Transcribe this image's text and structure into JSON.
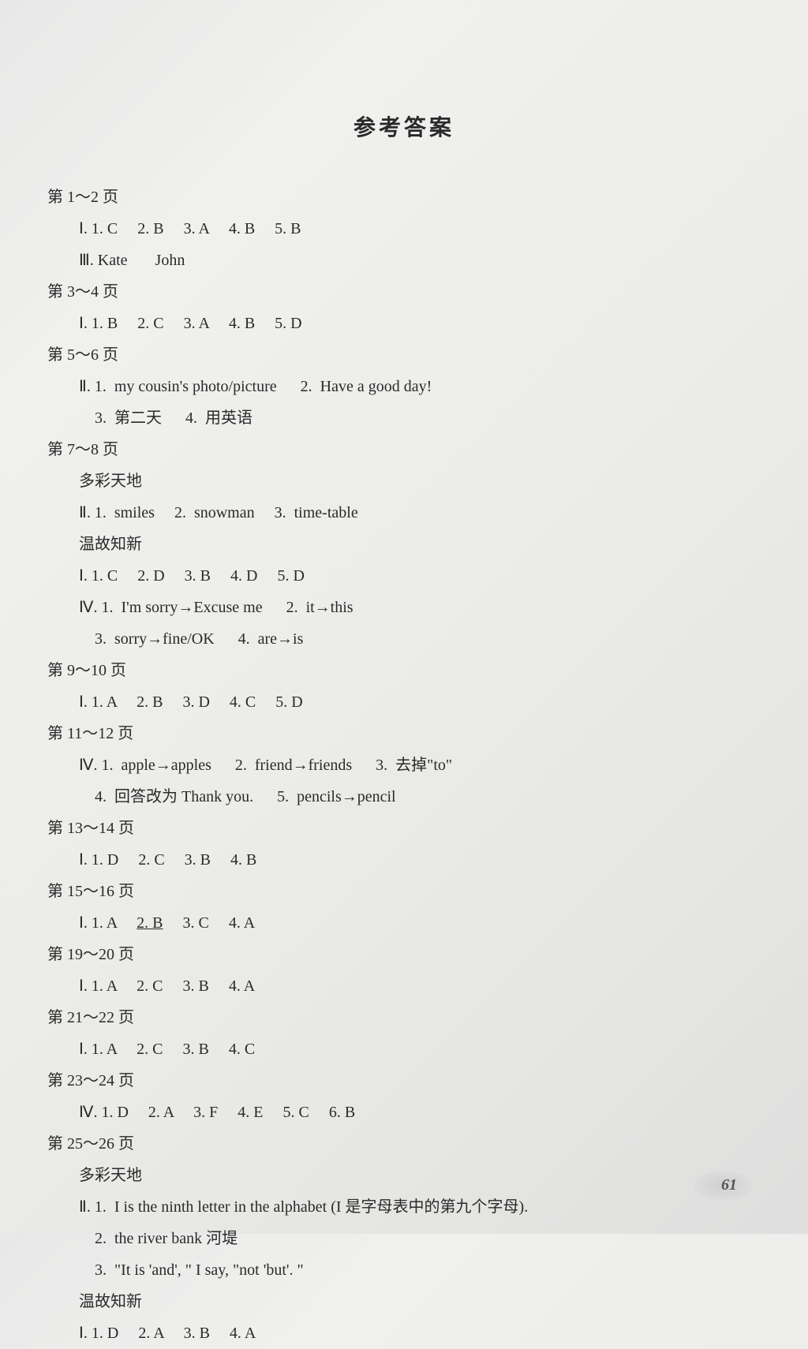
{
  "title": "参考答案",
  "page_number": "61",
  "typography": {
    "title_fontsize": 28,
    "body_fontsize": 20,
    "line_height": 2.0,
    "font_family": "SimSun, Times New Roman, serif"
  },
  "colors": {
    "text": "#2a2a2a",
    "background_gradient_start": "#e8e8e8",
    "background_gradient_end": "#dedede",
    "page_badge": "#c5c5c5"
  },
  "sections": [
    {
      "header": "第 1～2 页",
      "lines": [
        "Ⅰ. 1. C     2. B     3. A     4. B     5. B",
        "Ⅲ. Kate       John"
      ]
    },
    {
      "header": "第 3～4 页",
      "lines": [
        "Ⅰ. 1. B     2. C     3. A     4. B     5. D"
      ]
    },
    {
      "header": "第 5～6 页",
      "lines": [
        "Ⅱ. 1.  my cousin's photo/picture      2.  Have a good day!",
        "    3.  第二天      4.  用英语"
      ]
    },
    {
      "header": "第 7～8 页",
      "lines": [
        "多彩天地",
        "Ⅱ. 1.  smiles     2.  snowman     3.  time-table",
        "温故知新",
        "Ⅰ. 1. C     2. D     3. B     4. D     5. D",
        "Ⅳ. 1.  I'm sorry→Excuse me      2.  it→this",
        "    3.  sorry→fine/OK      4.  are→is"
      ]
    },
    {
      "header": "第 9～10 页",
      "lines": [
        "Ⅰ. 1. A     2. B     3. D     4. C     5. D"
      ]
    },
    {
      "header": "第 11～12 页",
      "lines": [
        "Ⅳ. 1.  apple→apples      2.  friend→friends      3.  去掉\"to\"",
        "    4.  回答改为 Thank you.      5.  pencils→pencil"
      ]
    },
    {
      "header": "第 13～14 页",
      "lines": [
        "Ⅰ. 1. D     2. C     3. B     4. B"
      ]
    },
    {
      "header": "第 15～16 页",
      "lines": [
        "Ⅰ. 1. A     2. B     3. C     4. A"
      ],
      "underline_index": 1
    },
    {
      "header": "第 19～20 页",
      "lines": [
        "Ⅰ. 1. A     2. C     3. B     4. A"
      ]
    },
    {
      "header": "第 21～22 页",
      "lines": [
        "Ⅰ. 1. A     2. C     3. B     4. C"
      ]
    },
    {
      "header": "第 23～24 页",
      "lines": [
        "Ⅳ. 1. D     2. A     3. F     4. E     5. C     6. B"
      ]
    },
    {
      "header": "第 25～26 页",
      "lines": [
        "多彩天地",
        "Ⅱ. 1.  I is the ninth letter in the alphabet (I 是字母表中的第九个字母).",
        "    2.  the river bank 河堤",
        "    3.  \"It is 'and', \" I say, \"not 'but'. \"",
        "温故知新",
        "Ⅰ. 1. D     2. A     3. B     4. A"
      ]
    }
  ]
}
